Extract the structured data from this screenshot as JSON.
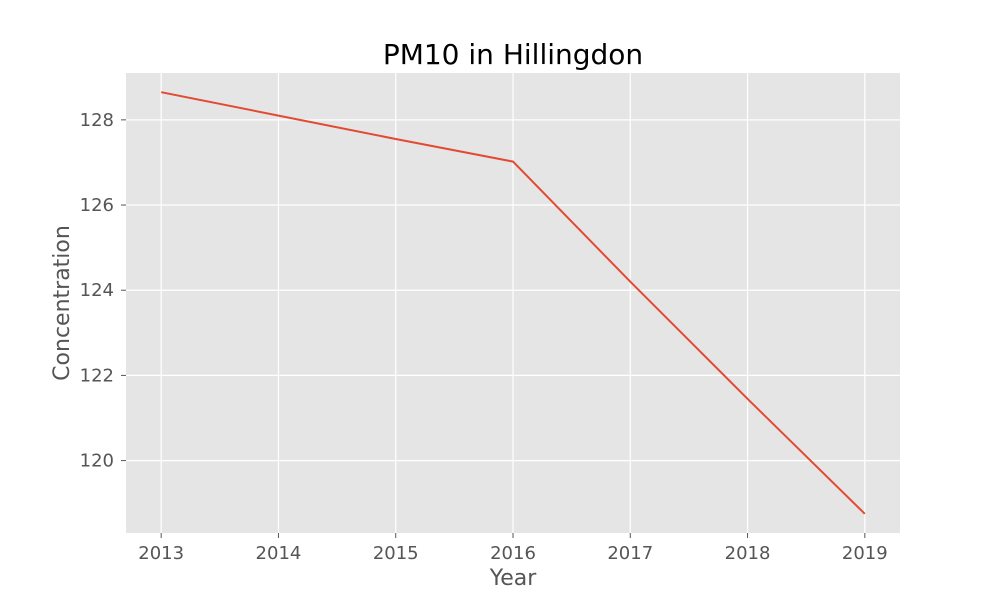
{
  "chart_data": {
    "type": "line",
    "title": "PM10 in Hillingdon",
    "xlabel": "Year",
    "ylabel": "Concentration",
    "x": [
      2013,
      2014,
      2015,
      2016,
      2017,
      2018,
      2019
    ],
    "x_ticks": [
      "2013",
      "2014",
      "2015",
      "2016",
      "2017",
      "2018",
      "2019"
    ],
    "y_ticks": [
      120,
      122,
      124,
      126,
      128
    ],
    "xlim": [
      2012.7,
      2019.3
    ],
    "ylim": [
      118.3,
      129.1
    ],
    "grid": true,
    "series": [
      {
        "values": [
          128.65,
          128.1,
          127.55,
          127.02,
          124.2,
          121.45,
          118.75
        ],
        "color": "#E24A33"
      }
    ]
  },
  "colors": {
    "plot_background": "#E5E5E5",
    "grid": "#FFFFFF",
    "tick_text": "#555555"
  }
}
